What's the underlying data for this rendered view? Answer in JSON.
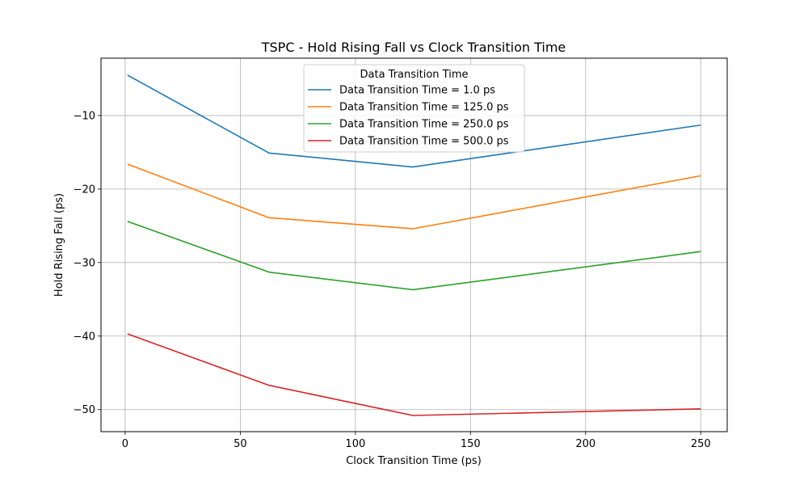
{
  "chart_data": {
    "type": "line",
    "title": "TSPC - Hold Rising Fall vs Clock Transition Time",
    "xlabel": "Clock Transition Time (ps)",
    "ylabel": "Hold Rising Fall (ps)",
    "x": [
      1,
      62.5,
      125,
      250
    ],
    "xlim": [
      -10.5,
      261.5
    ],
    "ylim": [
      -53,
      -2.2
    ],
    "xticks": [
      0,
      50,
      100,
      150,
      200,
      250
    ],
    "yticks": [
      -10,
      -20,
      -30,
      -40,
      -50
    ],
    "grid": true,
    "legend": {
      "title": "Data Transition Time",
      "placement": "upper-center"
    },
    "series": [
      {
        "name": "Data Transition Time = 1.0 ps",
        "color": "#1f77b4",
        "values": [
          -4.5,
          -15.1,
          -17.0,
          -11.3
        ]
      },
      {
        "name": "Data Transition Time = 125.0 ps",
        "color": "#ff7f0e",
        "values": [
          -16.6,
          -23.9,
          -25.4,
          -18.2
        ]
      },
      {
        "name": "Data Transition Time = 250.0 ps",
        "color": "#2ca02c",
        "values": [
          -24.4,
          -31.3,
          -33.7,
          -28.5
        ]
      },
      {
        "name": "Data Transition Time = 500.0 ps",
        "color": "#d62728",
        "values": [
          -39.7,
          -46.7,
          -50.8,
          -49.9
        ]
      }
    ]
  }
}
